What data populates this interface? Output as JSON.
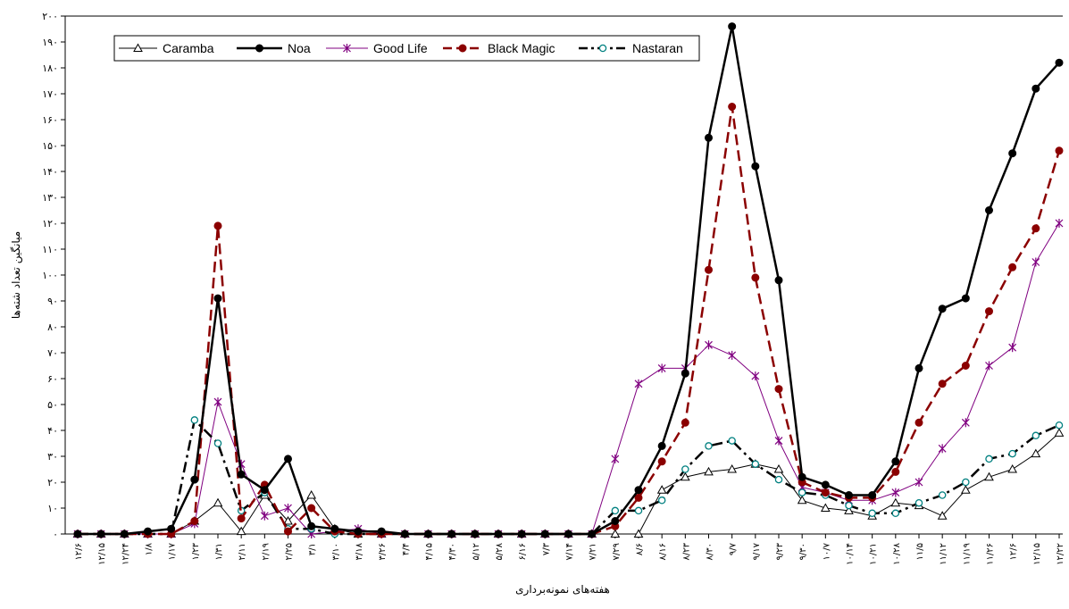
{
  "chart_data": {
    "type": "line",
    "xlabel": "هفته‌های نمونه‌برداری",
    "ylabel": "میانگین تعداد شته‌ها",
    "ylim": [
      0,
      200
    ],
    "y_ticks": [
      "۰",
      "۱۰",
      "۲۰",
      "۳۰",
      "۴۰",
      "۵۰",
      "۶۰",
      "۷۰",
      "۸۰",
      "۹۰",
      "۱۰۰",
      "۱۱۰",
      "۱۲۰",
      "۱۳۰",
      "۱۴۰",
      "۱۵۰",
      "۱۶۰",
      "۱۷۰",
      "۱۸۰",
      "۱۹۰",
      "۲۰۰"
    ],
    "grid": false,
    "legend_position": "top-left",
    "categories": [
      "۱۲/۶",
      "۱۲/۱۵",
      "۱۲/۲۴",
      "۱/۸",
      "۱/۱۷",
      "۱/۲۳",
      "۱/۳۱",
      "۲/۱۱",
      "۲/۱۹",
      "۲/۲۵",
      "۳/۱",
      "۳/۱۰",
      "۳/۱۸",
      "۳/۲۶",
      "۴/۴",
      "۴/۱۵",
      "۴/۳۰",
      "۵/۱۲",
      "۵/۲۸",
      "۶/۱۶",
      "۷/۳",
      "۷/۱۴",
      "۷/۲۱",
      "۷/۲۹",
      "۸/۶",
      "۸/۱۶",
      "۸/۲۳",
      "۸/۳۰",
      "۹/۷",
      "۹/۱۷",
      "۹/۲۳",
      "۹/۳۰",
      "۱۰/۷",
      "۱۰/۱۴",
      "۱۰/۲۱",
      "۱۰/۲۸",
      "۱۱/۵",
      "۱۱/۱۲",
      "۱۱/۱۹",
      "۱۱/۲۶",
      "۱۲/۶",
      "۱۲/۱۵",
      "۱۲/۲۲"
    ],
    "series": [
      {
        "name": "Caramba",
        "color": "#000000",
        "style": "thin",
        "marker": "triangle",
        "values": [
          0,
          0,
          0,
          0,
          0,
          5,
          12,
          1,
          15,
          5,
          15,
          2,
          0,
          0,
          0,
          0,
          0,
          0,
          0,
          0,
          0,
          0,
          0,
          0,
          0,
          17,
          22,
          24,
          25,
          27,
          25,
          13,
          10,
          9,
          7,
          12,
          11,
          7,
          17,
          22,
          25,
          31,
          39
        ]
      },
      {
        "name": "Noa",
        "color": "#000000",
        "style": "thick",
        "marker": "dot",
        "values": [
          0,
          0,
          0,
          1,
          2,
          21,
          91,
          23,
          17,
          29,
          3,
          2,
          1,
          1,
          0,
          0,
          0,
          0,
          0,
          0,
          0,
          0,
          0,
          5,
          17,
          34,
          62,
          153,
          196,
          142,
          98,
          22,
          19,
          15,
          15,
          28,
          64,
          87,
          91,
          125,
          147,
          172,
          182
        ]
      },
      {
        "name": "Good Life",
        "color": "#800080",
        "style": "thin",
        "marker": "star",
        "values": [
          0,
          0,
          0,
          0,
          0,
          4,
          51,
          27,
          7,
          10,
          0,
          1,
          2,
          0,
          0,
          0,
          0,
          0,
          0,
          0,
          0,
          0,
          0,
          29,
          58,
          64,
          64,
          73,
          69,
          61,
          36,
          18,
          16,
          13,
          13,
          16,
          20,
          33,
          43,
          65,
          72,
          105,
          120
        ]
      },
      {
        "name": "Black Magic",
        "color": "#8B0000",
        "style": "dashed",
        "marker": "dot",
        "values": [
          0,
          0,
          0,
          0,
          0,
          5,
          119,
          6,
          19,
          1,
          10,
          1,
          0,
          0,
          0,
          0,
          0,
          0,
          0,
          0,
          0,
          0,
          0,
          3,
          14,
          28,
          43,
          102,
          165,
          99,
          56,
          20,
          16,
          14,
          14,
          24,
          43,
          58,
          65,
          86,
          103,
          118,
          148
        ]
      },
      {
        "name": "Nastaran",
        "color": "#000000",
        "style": "dashdot",
        "marker": "ring",
        "values": [
          0,
          0,
          0,
          0,
          0,
          44,
          35,
          9,
          16,
          2,
          2,
          0,
          0,
          0,
          0,
          0,
          0,
          0,
          0,
          0,
          0,
          0,
          0,
          9,
          9,
          13,
          25,
          34,
          36,
          27,
          21,
          16,
          15,
          11,
          8,
          8,
          12,
          15,
          20,
          29,
          31,
          38,
          42
        ]
      }
    ]
  }
}
